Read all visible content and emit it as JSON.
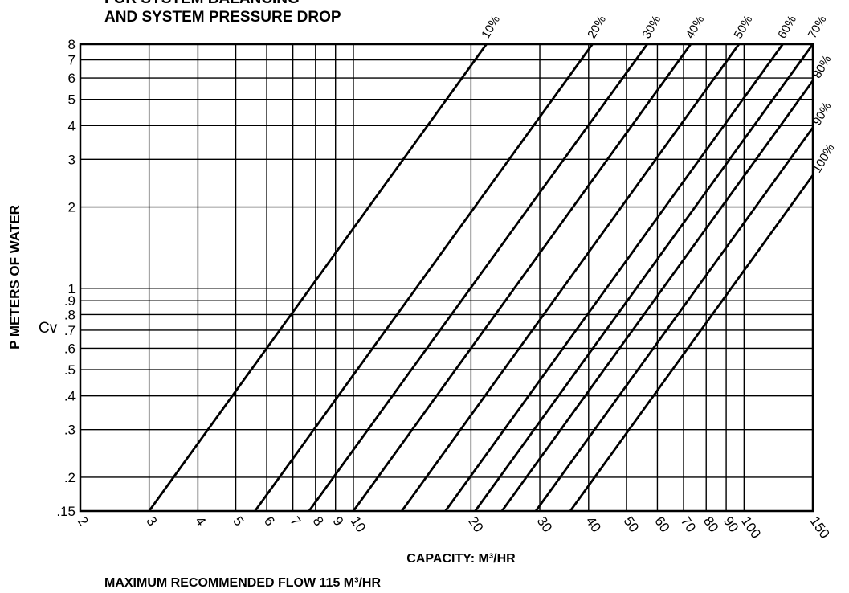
{
  "chart_data": {
    "type": "line",
    "title": [
      "FOR SYSTEM BALANCING",
      "AND SYSTEM PRESSURE DROP"
    ],
    "ylabel": "P METERS OF WATER",
    "xlabel": "CAPACITY: M³/HR",
    "annotations": [
      "Cv",
      "MAXIMUM RECOMMENDED FLOW 115 M³/HR"
    ],
    "xscale": "log",
    "yscale": "log",
    "grid": true,
    "xlim": [
      2,
      150
    ],
    "ylim": [
      0.15,
      8
    ],
    "xticks": [
      2,
      3,
      4,
      5,
      6,
      7,
      8,
      9,
      10,
      20,
      30,
      40,
      50,
      60,
      70,
      80,
      90,
      100,
      150
    ],
    "yticks": [
      {
        "value": 0.15,
        "label": ".15"
      },
      {
        "value": 0.2,
        "label": ".2"
      },
      {
        "value": 0.3,
        "label": ".3"
      },
      {
        "value": 0.4,
        "label": ".4"
      },
      {
        "value": 0.5,
        "label": ".5"
      },
      {
        "value": 0.6,
        "label": ".6"
      },
      {
        "value": 0.7,
        "label": ".7"
      },
      {
        "value": 0.8,
        "label": ".8"
      },
      {
        "value": 0.9,
        "label": ".9"
      },
      1,
      2,
      3,
      4,
      5,
      6,
      7,
      8
    ],
    "series": [
      {
        "name": "10%",
        "color": "#000000",
        "x": [
          3,
          21.9
        ],
        "values": [
          0.15,
          8
        ]
      },
      {
        "name": "20%",
        "color": "#000000",
        "x": [
          5.6,
          40.9
        ],
        "values": [
          0.15,
          8
        ]
      },
      {
        "name": "30%",
        "color": "#000000",
        "x": [
          7.7,
          56.5
        ],
        "values": [
          0.15,
          8
        ]
      },
      {
        "name": "40%",
        "color": "#000000",
        "x": [
          10,
          73
        ],
        "values": [
          0.15,
          8
        ]
      },
      {
        "name": "50%",
        "color": "#000000",
        "x": [
          13.3,
          97
        ],
        "values": [
          0.15,
          8
        ]
      },
      {
        "name": "60%",
        "color": "#000000",
        "x": [
          17.2,
          125.6
        ],
        "values": [
          0.15,
          8
        ]
      },
      {
        "name": "70%",
        "color": "#000000",
        "x": [
          20.5,
          150
        ],
        "values": [
          0.15,
          8
        ]
      },
      {
        "name": "80%",
        "color": "#000000",
        "x": [
          24,
          150
        ],
        "values": [
          0.15,
          5.86
        ]
      },
      {
        "name": "90%",
        "color": "#000000",
        "x": [
          29.3,
          150
        ],
        "values": [
          0.15,
          3.93
        ]
      },
      {
        "name": "100%",
        "color": "#000000",
        "x": [
          35.9,
          150
        ],
        "values": [
          0.15,
          2.62
        ]
      }
    ]
  }
}
